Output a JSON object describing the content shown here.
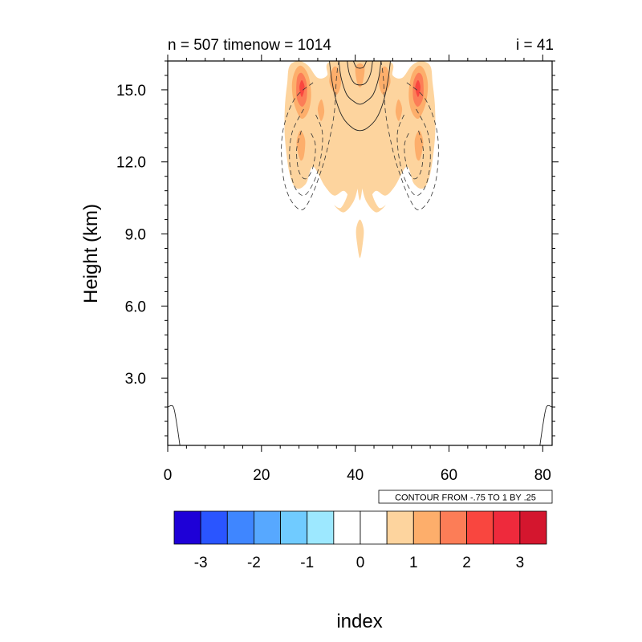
{
  "chart_data": {
    "type": "contour",
    "title_left": "n = 507 timenow = 1014",
    "title_right": "i = 41",
    "xlabel": "index",
    "ylabel": "Height (km)",
    "xlim": [
      0,
      82
    ],
    "ylim": [
      0.2,
      16.2
    ],
    "xticks": [
      {
        "value": 0,
        "label": "0"
      },
      {
        "value": 20,
        "label": "20"
      },
      {
        "value": 40,
        "label": "40"
      },
      {
        "value": 60,
        "label": "60"
      },
      {
        "value": 80,
        "label": "80"
      }
    ],
    "yticks": [
      {
        "value": 3.0,
        "label": "3.0"
      },
      {
        "value": 6.0,
        "label": "6.0"
      },
      {
        "value": 9.0,
        "label": "9.0"
      },
      {
        "value": 12.0,
        "label": "12.0"
      },
      {
        "value": 15.0,
        "label": "15.0"
      }
    ],
    "contour_info": "CONTOUR FROM -.75 TO 1 BY .25",
    "colorbar": {
      "colors": [
        "#1e00d7",
        "#2a55ff",
        "#3f86ff",
        "#57a8ff",
        "#70cbff",
        "#9de8ff",
        "#ffffff",
        "#ffffff",
        "#fdd49e",
        "#fdae6b",
        "#fc7d57",
        "#f9463f",
        "#ee2a3c",
        "#d4162e"
      ],
      "labels": [
        {
          "value": -3,
          "label": "-3"
        },
        {
          "value": -2,
          "label": "-2"
        },
        {
          "value": -1,
          "label": "-1"
        },
        {
          "value": 0,
          "label": "0"
        },
        {
          "value": 1,
          "label": "1"
        },
        {
          "value": 2,
          "label": "2"
        },
        {
          "value": 3,
          "label": "3"
        }
      ]
    },
    "filled_regions": [
      {
        "level": 1,
        "color": "#fdd49e",
        "points": [
          [
            25.5,
            15.3
          ],
          [
            26,
            16.0
          ],
          [
            28,
            16.2
          ],
          [
            30,
            16.0
          ],
          [
            32,
            15.5
          ],
          [
            34,
            15.6
          ],
          [
            35,
            16.2
          ],
          [
            47,
            16.2
          ],
          [
            48,
            15.6
          ],
          [
            50,
            15.5
          ],
          [
            52,
            16.0
          ],
          [
            54,
            16.2
          ],
          [
            56,
            16.0
          ],
          [
            56.5,
            15.3
          ],
          [
            57,
            14.3
          ],
          [
            57,
            13.0
          ],
          [
            56,
            11.5
          ],
          [
            54.5,
            10.9
          ],
          [
            52.5,
            11.1
          ],
          [
            51,
            11.8
          ],
          [
            48.5,
            11.0
          ],
          [
            46.5,
            10.6
          ],
          [
            44.5,
            10.8
          ],
          [
            43,
            10.6
          ],
          [
            42,
            11.4
          ],
          [
            41,
            10.4
          ],
          [
            40,
            11.4
          ],
          [
            39,
            10.6
          ],
          [
            37.5,
            10.8
          ],
          [
            35.5,
            10.6
          ],
          [
            33.5,
            11.0
          ],
          [
            31,
            11.8
          ],
          [
            29.5,
            11.1
          ],
          [
            27.5,
            10.9
          ],
          [
            26,
            11.5
          ],
          [
            25,
            13.0
          ],
          [
            25,
            14.3
          ]
        ]
      },
      {
        "level": 1,
        "color": "#fdd49e",
        "points": [
          [
            37.5,
            11.5
          ],
          [
            38.5,
            10.8
          ],
          [
            37,
            10.1
          ],
          [
            35.5,
            10.2
          ],
          [
            37.5,
            9.9
          ],
          [
            39.5,
            10.3
          ],
          [
            40.5,
            10.9
          ],
          [
            41,
            11.7
          ],
          [
            41.5,
            10.9
          ],
          [
            42.5,
            10.3
          ],
          [
            44.5,
            9.9
          ],
          [
            46.5,
            10.2
          ],
          [
            45,
            10.1
          ],
          [
            43.5,
            10.8
          ],
          [
            44.5,
            11.5
          ],
          [
            43.5,
            12.6
          ],
          [
            41.5,
            12.2
          ],
          [
            41,
            12.5
          ],
          [
            40.5,
            12.2
          ],
          [
            38.5,
            12.6
          ]
        ]
      },
      {
        "level": 1,
        "color": "#fdd49e",
        "points": [
          [
            41,
            9.6
          ],
          [
            41.8,
            9.2
          ],
          [
            41.6,
            8.6
          ],
          [
            41,
            8.0
          ],
          [
            40.4,
            8.6
          ],
          [
            40.2,
            9.2
          ]
        ]
      },
      {
        "level": 2,
        "color": "#fdae6b",
        "points": [
          [
            27,
            14.4
          ],
          [
            26.5,
            15.2
          ],
          [
            27.2,
            15.8
          ],
          [
            28.5,
            16.0
          ],
          [
            30,
            15.6
          ],
          [
            30.6,
            14.8
          ],
          [
            30,
            14.1
          ],
          [
            28.5,
            13.8
          ]
        ]
      },
      {
        "level": 2,
        "color": "#fdae6b",
        "points": [
          [
            55,
            14.4
          ],
          [
            55.5,
            15.2
          ],
          [
            54.8,
            15.8
          ],
          [
            53.5,
            16.0
          ],
          [
            52,
            15.6
          ],
          [
            51.4,
            14.8
          ],
          [
            52,
            14.1
          ],
          [
            53.5,
            13.8
          ]
        ]
      },
      {
        "level": 2,
        "color": "#fdae6b",
        "points": [
          [
            34.5,
            15.3
          ],
          [
            35.2,
            15.9
          ],
          [
            36.3,
            15.9
          ],
          [
            37,
            15.3
          ],
          [
            36,
            14.8
          ]
        ]
      },
      {
        "level": 2,
        "color": "#fdae6b",
        "points": [
          [
            47.5,
            15.3
          ],
          [
            46.8,
            15.9
          ],
          [
            45.7,
            15.9
          ],
          [
            45,
            15.3
          ],
          [
            46,
            14.8
          ]
        ]
      },
      {
        "level": 2,
        "color": "#fdae6b",
        "points": [
          [
            40,
            15.9
          ],
          [
            41,
            16.1
          ],
          [
            42,
            15.9
          ],
          [
            41.6,
            15.3
          ],
          [
            41,
            15.1
          ],
          [
            40.4,
            15.3
          ]
        ]
      },
      {
        "level": 2,
        "color": "#fdae6b",
        "points": [
          [
            27.5,
            12.8
          ],
          [
            28.3,
            13.3
          ],
          [
            29.3,
            12.9
          ],
          [
            29,
            12.2
          ],
          [
            28.2,
            12.1
          ]
        ]
      },
      {
        "level": 2,
        "color": "#fdae6b",
        "points": [
          [
            54.5,
            12.8
          ],
          [
            53.7,
            13.3
          ],
          [
            52.7,
            12.9
          ],
          [
            53,
            12.2
          ],
          [
            53.8,
            12.1
          ]
        ]
      },
      {
        "level": 2,
        "color": "#fdae6b",
        "points": [
          [
            32,
            14.2
          ],
          [
            32.8,
            14.6
          ],
          [
            33.4,
            14.1
          ],
          [
            32.7,
            13.7
          ]
        ]
      },
      {
        "level": 2,
        "color": "#fdae6b",
        "points": [
          [
            50,
            14.2
          ],
          [
            49.2,
            14.6
          ],
          [
            48.6,
            14.1
          ],
          [
            49.3,
            13.7
          ]
        ]
      },
      {
        "level": 3,
        "color": "#fc7d57",
        "points": [
          [
            27.5,
            14.7
          ],
          [
            27.6,
            15.5
          ],
          [
            28.6,
            15.7
          ],
          [
            29.6,
            15.3
          ],
          [
            29.6,
            14.6
          ],
          [
            28.6,
            14.3
          ]
        ]
      },
      {
        "level": 3,
        "color": "#fc7d57",
        "points": [
          [
            54.5,
            14.7
          ],
          [
            54.4,
            15.5
          ],
          [
            53.4,
            15.7
          ],
          [
            52.4,
            15.3
          ],
          [
            52.4,
            14.6
          ],
          [
            53.4,
            14.3
          ]
        ]
      },
      {
        "level": 4,
        "color": "#f9463f",
        "points": [
          [
            28.1,
            15.1
          ],
          [
            28.6,
            15.4
          ],
          [
            29.2,
            15.1
          ],
          [
            28.6,
            14.7
          ]
        ]
      },
      {
        "level": 4,
        "color": "#f9463f",
        "points": [
          [
            53.9,
            15.1
          ],
          [
            53.4,
            15.4
          ],
          [
            52.8,
            15.1
          ],
          [
            53.4,
            14.7
          ]
        ]
      }
    ],
    "positive_contours": [
      {
        "points": [
          [
            34.5,
            16.2
          ],
          [
            35,
            15.4
          ],
          [
            36,
            14.5
          ],
          [
            37.5,
            13.8
          ],
          [
            39.5,
            13.4
          ],
          [
            41,
            13.3
          ],
          [
            42.5,
            13.4
          ],
          [
            44.5,
            13.8
          ],
          [
            46,
            14.5
          ],
          [
            47,
            15.4
          ],
          [
            47.5,
            16.2
          ]
        ]
      },
      {
        "points": [
          [
            36.5,
            16.2
          ],
          [
            37,
            15.5
          ],
          [
            38.2,
            14.8
          ],
          [
            39.8,
            14.5
          ],
          [
            41,
            14.4
          ],
          [
            42.2,
            14.5
          ],
          [
            43.8,
            14.8
          ],
          [
            45,
            15.5
          ],
          [
            45.5,
            16.2
          ]
        ]
      },
      {
        "points": [
          [
            38.3,
            16.2
          ],
          [
            38.7,
            15.7
          ],
          [
            39.7,
            15.3
          ],
          [
            41,
            15.2
          ],
          [
            42.3,
            15.3
          ],
          [
            43.3,
            15.7
          ],
          [
            43.7,
            16.2
          ]
        ]
      },
      {
        "points": [
          [
            39.6,
            16.2
          ],
          [
            40.2,
            15.95
          ],
          [
            41,
            15.9
          ],
          [
            41.8,
            15.95
          ],
          [
            42.4,
            16.2
          ]
        ]
      },
      {
        "points": [
          [
            0,
            1.8
          ],
          [
            1.2,
            1.8
          ],
          [
            2,
            1.0
          ],
          [
            2.6,
            0.2
          ]
        ]
      },
      {
        "points": [
          [
            82,
            1.8
          ],
          [
            80.8,
            1.8
          ],
          [
            80,
            1.0
          ],
          [
            79.4,
            0.2
          ]
        ]
      }
    ],
    "negative_contours": [
      {
        "points": [
          [
            31,
            15.3
          ],
          [
            27,
            14.6
          ],
          [
            24.5,
            13.2
          ],
          [
            24.5,
            11.6
          ],
          [
            26,
            10.5
          ],
          [
            28.5,
            10.0
          ],
          [
            30.5,
            10.5
          ],
          [
            32.5,
            11.5
          ],
          [
            34,
            12.5
          ],
          [
            35.5,
            14.0
          ],
          [
            36,
            15.5
          ],
          [
            36.5,
            16.2
          ]
        ]
      },
      {
        "points": [
          [
            29,
            14.2
          ],
          [
            26.5,
            13.2
          ],
          [
            26,
            12.0
          ],
          [
            27,
            11.0
          ],
          [
            29,
            10.6
          ],
          [
            31,
            11.1
          ],
          [
            32.5,
            12.0
          ],
          [
            33,
            13.2
          ],
          [
            31.5,
            14.0
          ]
        ]
      },
      {
        "points": [
          [
            28.5,
            13.3
          ],
          [
            27.5,
            12.5
          ],
          [
            28,
            11.6
          ],
          [
            29.5,
            11.3
          ],
          [
            31,
            11.8
          ],
          [
            31.5,
            12.7
          ],
          [
            30.3,
            13.3
          ]
        ]
      },
      {
        "points": [
          [
            51,
            15.3
          ],
          [
            55,
            14.6
          ],
          [
            57.5,
            13.2
          ],
          [
            57.5,
            11.6
          ],
          [
            56,
            10.5
          ],
          [
            53.5,
            10.0
          ],
          [
            51.5,
            10.5
          ],
          [
            49.5,
            11.5
          ],
          [
            48,
            12.5
          ],
          [
            46.5,
            14.0
          ],
          [
            46,
            15.5
          ],
          [
            45.5,
            16.2
          ]
        ]
      },
      {
        "points": [
          [
            53,
            14.2
          ],
          [
            55.5,
            13.2
          ],
          [
            56,
            12.0
          ],
          [
            55,
            11.0
          ],
          [
            53,
            10.6
          ],
          [
            51,
            11.1
          ],
          [
            49.5,
            12.0
          ],
          [
            49,
            13.2
          ],
          [
            50.5,
            14.0
          ]
        ]
      },
      {
        "points": [
          [
            53.5,
            13.3
          ],
          [
            54.5,
            12.5
          ],
          [
            54,
            11.6
          ],
          [
            52.5,
            11.3
          ],
          [
            51,
            11.8
          ],
          [
            50.5,
            12.7
          ],
          [
            51.7,
            13.3
          ]
        ]
      }
    ]
  }
}
